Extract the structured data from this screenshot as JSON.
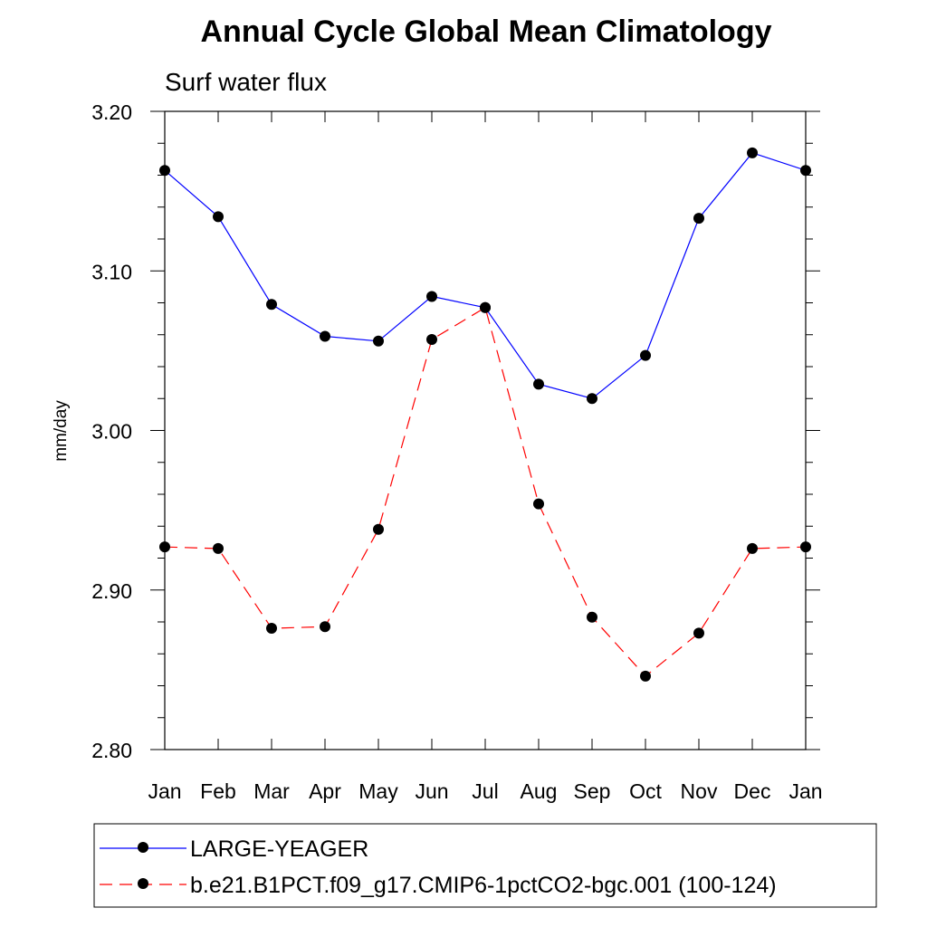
{
  "chart_data": {
    "type": "line",
    "title": "Annual Cycle Global Mean Climatology",
    "subtitle": "Surf water flux",
    "xlabel": "",
    "ylabel": "mm/day",
    "categories": [
      "Jan",
      "Feb",
      "Mar",
      "Apr",
      "May",
      "Jun",
      "Jul",
      "Aug",
      "Sep",
      "Oct",
      "Nov",
      "Dec",
      "Jan"
    ],
    "ylim": [
      2.8,
      3.2
    ],
    "y_ticks": [
      2.8,
      2.9,
      3.0,
      3.1,
      3.2
    ],
    "y_tick_labels": [
      "2.80",
      "2.90",
      "3.00",
      "3.10",
      "3.20"
    ],
    "y_minor_step": 0.02,
    "grid": false,
    "legend_position": "bottom",
    "series": [
      {
        "name": "LARGE-YEAGER",
        "color": "#0000ff",
        "dash": "solid",
        "marker": "filled-circle",
        "values": [
          3.163,
          3.134,
          3.079,
          3.059,
          3.056,
          3.084,
          3.077,
          3.029,
          3.02,
          3.047,
          3.133,
          3.174,
          3.163
        ]
      },
      {
        "name": "b.e21.B1PCT.f09_g17.CMIP6-1pctCO2-bgc.001 (100-124)",
        "color": "#ff0000",
        "dash": "dashed",
        "marker": "filled-circle",
        "values": [
          2.927,
          2.926,
          2.876,
          2.877,
          2.938,
          3.057,
          3.077,
          2.954,
          2.883,
          2.846,
          2.873,
          2.926,
          2.927
        ]
      }
    ]
  }
}
